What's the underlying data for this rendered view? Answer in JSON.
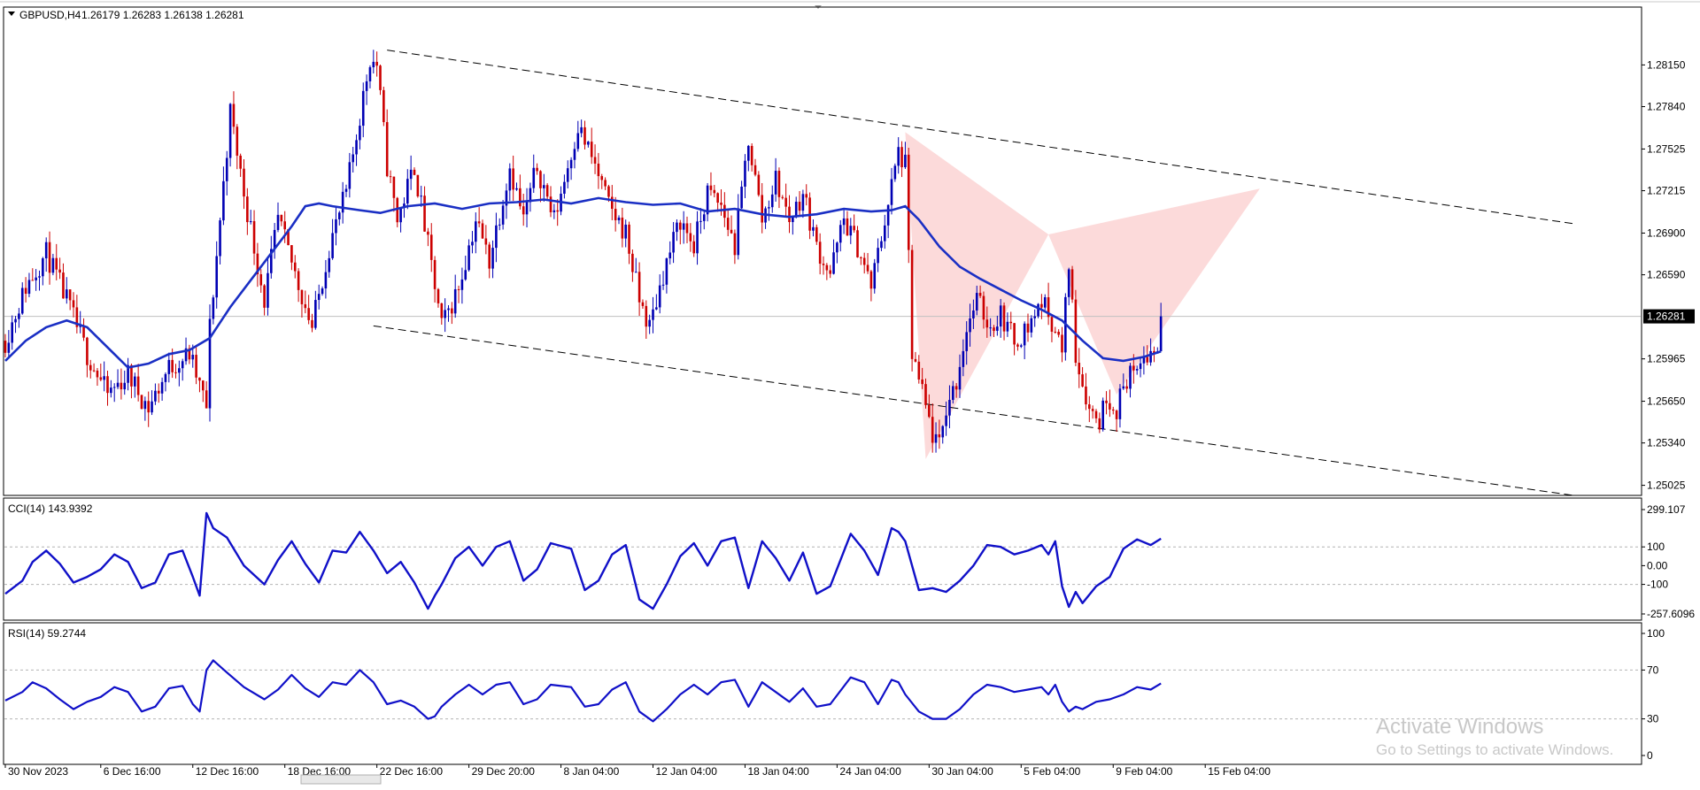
{
  "chart_data": [
    {
      "type": "candlestick",
      "title": "GBPUSD,H4",
      "ohlc_label": "1.26179 1.26283 1.26138 1.26281",
      "current_price": 1.26281,
      "current_price_label": "1.26281",
      "ylim": [
        1.2495,
        1.2858
      ],
      "y_ticks": [
        1.2815,
        1.2784,
        1.27525,
        1.27215,
        1.269,
        1.2659,
        1.25965,
        1.2565,
        1.2534,
        1.25025
      ],
      "y_tick_labels": [
        "1.28150",
        "1.27840",
        "1.27525",
        "1.27215",
        "1.26900",
        "1.26590",
        "1.25965",
        "1.25650",
        "1.25340",
        "1.25025"
      ],
      "colors": {
        "bull": "#0000b4",
        "bear": "#cc0000",
        "moving_average": "#1a2fc4",
        "pattern_fill": "#fbd3d3"
      },
      "price_path": [
        [
          0,
          1.261
        ],
        [
          6,
          1.265
        ],
        [
          12,
          1.2675
        ],
        [
          18,
          1.264
        ],
        [
          24,
          1.26
        ],
        [
          30,
          1.257
        ],
        [
          36,
          1.2585
        ],
        [
          42,
          1.256
        ],
        [
          48,
          1.259
        ],
        [
          54,
          1.26
        ],
        [
          59,
          1.256
        ],
        [
          60,
          1.262
        ],
        [
          63,
          1.27
        ],
        [
          66,
          1.278
        ],
        [
          70,
          1.272
        ],
        [
          76,
          1.264
        ],
        [
          80,
          1.27
        ],
        [
          85,
          1.266
        ],
        [
          90,
          1.262
        ],
        [
          95,
          1.268
        ],
        [
          100,
          1.272
        ],
        [
          107,
          1.282
        ],
        [
          109,
          1.2815
        ],
        [
          112,
          1.274
        ],
        [
          115,
          1.27
        ],
        [
          120,
          1.274
        ],
        [
          124,
          1.268
        ],
        [
          128,
          1.262
        ],
        [
          133,
          1.265
        ],
        [
          138,
          1.27
        ],
        [
          142,
          1.267
        ],
        [
          148,
          1.274
        ],
        [
          152,
          1.27
        ],
        [
          156,
          1.274
        ],
        [
          161,
          1.27
        ],
        [
          168,
          1.277
        ],
        [
          173,
          1.274
        ],
        [
          177,
          1.271
        ],
        [
          182,
          1.269
        ],
        [
          186,
          1.264
        ],
        [
          189,
          1.262
        ],
        [
          193,
          1.266
        ],
        [
          198,
          1.27
        ],
        [
          202,
          1.268
        ],
        [
          206,
          1.272
        ],
        [
          210,
          1.271
        ],
        [
          214,
          1.268
        ],
        [
          218,
          1.276
        ],
        [
          222,
          1.27
        ],
        [
          226,
          1.273
        ],
        [
          230,
          1.27
        ],
        [
          234,
          1.272
        ],
        [
          238,
          1.268
        ],
        [
          242,
          1.266
        ],
        [
          246,
          1.27
        ],
        [
          250,
          1.268
        ],
        [
          254,
          1.265
        ],
        [
          258,
          1.27
        ],
        [
          262,
          1.275
        ],
        [
          264,
          1.274
        ],
        [
          266,
          1.26
        ],
        [
          268,
          1.258
        ],
        [
          272,
          1.254
        ],
        [
          274,
          1.253
        ],
        [
          276,
          1.256
        ],
        [
          279,
          1.258
        ],
        [
          282,
          1.262
        ],
        [
          285,
          1.264
        ],
        [
          289,
          1.262
        ],
        [
          292,
          1.263
        ],
        [
          296,
          1.261
        ],
        [
          300,
          1.262
        ],
        [
          304,
          1.264
        ],
        [
          308,
          1.262
        ],
        [
          310,
          1.26
        ],
        [
          312,
          1.267
        ],
        [
          314,
          1.26
        ],
        [
          316,
          1.258
        ],
        [
          318,
          1.256
        ],
        [
          321,
          1.255
        ],
        [
          323,
          1.257
        ],
        [
          326,
          1.256
        ],
        [
          330,
          1.259
        ],
        [
          332,
          1.258
        ],
        [
          334,
          1.26
        ],
        [
          336,
          1.26
        ],
        [
          338,
          1.2605
        ],
        [
          339,
          1.26281
        ]
      ],
      "moving_average_path": [
        [
          0,
          1.2595
        ],
        [
          6,
          1.261
        ],
        [
          12,
          1.262
        ],
        [
          18,
          1.2625
        ],
        [
          24,
          1.262
        ],
        [
          30,
          1.2605
        ],
        [
          36,
          1.259
        ],
        [
          42,
          1.2593
        ],
        [
          48,
          1.26
        ],
        [
          54,
          1.2603
        ],
        [
          60,
          1.2612
        ],
        [
          66,
          1.2635
        ],
        [
          72,
          1.2655
        ],
        [
          78,
          1.2675
        ],
        [
          84,
          1.2695
        ],
        [
          88,
          1.271
        ],
        [
          92,
          1.2712
        ],
        [
          96,
          1.271
        ],
        [
          104,
          1.2707
        ],
        [
          110,
          1.2705
        ],
        [
          118,
          1.271
        ],
        [
          126,
          1.2712
        ],
        [
          134,
          1.2708
        ],
        [
          142,
          1.2712
        ],
        [
          150,
          1.2713
        ],
        [
          158,
          1.2715
        ],
        [
          166,
          1.2712
        ],
        [
          174,
          1.2716
        ],
        [
          182,
          1.2713
        ],
        [
          190,
          1.2711
        ],
        [
          198,
          1.2712
        ],
        [
          206,
          1.2706
        ],
        [
          214,
          1.2708
        ],
        [
          222,
          1.2704
        ],
        [
          230,
          1.2702
        ],
        [
          238,
          1.2704
        ],
        [
          246,
          1.2708
        ],
        [
          254,
          1.2706
        ],
        [
          260,
          1.2707
        ],
        [
          264,
          1.271
        ],
        [
          268,
          1.27
        ],
        [
          274,
          1.268
        ],
        [
          280,
          1.2665
        ],
        [
          286,
          1.2656
        ],
        [
          292,
          1.2648
        ],
        [
          298,
          1.264
        ],
        [
          304,
          1.2633
        ],
        [
          310,
          1.2625
        ],
        [
          316,
          1.261
        ],
        [
          322,
          1.2597
        ],
        [
          328,
          1.2595
        ],
        [
          334,
          1.2598
        ],
        [
          339,
          1.2602
        ]
      ],
      "channel_upper": {
        "from": [
          112,
          1.2826
        ],
        "to": [
          460,
          1.2697
        ]
      },
      "channel_lower": {
        "from": [
          108,
          1.2621
        ],
        "to": [
          460,
          1.2495
        ]
      },
      "pattern_triangles": [
        {
          "a": [
            264,
            1.2765
          ],
          "b": [
            270,
            1.2522
          ],
          "c": [
            306,
            1.2689
          ]
        },
        {
          "a": [
            306,
            1.2689
          ],
          "b": [
            326,
            1.257
          ],
          "c": [
            368,
            1.2723
          ]
        }
      ]
    },
    {
      "type": "line",
      "title": "CCI(14) 143.9392",
      "ylim": [
        -257.6096,
        299.107
      ],
      "y_tick_labels": [
        "299.107",
        "100",
        "0.00",
        "-100",
        "-257.6096"
      ],
      "y_ticks": [
        299.107,
        100,
        0,
        -100,
        -257.6096
      ],
      "levels": [
        100,
        -100
      ],
      "x": [
        0,
        5,
        8,
        12,
        16,
        20,
        24,
        28,
        32,
        36,
        40,
        44,
        48,
        52,
        55,
        57,
        59,
        61,
        65,
        70,
        76,
        80,
        84,
        88,
        92,
        96,
        100,
        104,
        108,
        112,
        116,
        120,
        124,
        126,
        128,
        132,
        136,
        140,
        144,
        148,
        152,
        156,
        160,
        166,
        170,
        174,
        178,
        182,
        186,
        190,
        194,
        198,
        202,
        206,
        210,
        214,
        218,
        222,
        226,
        230,
        234,
        238,
        242,
        248,
        252,
        256,
        260,
        262,
        264,
        268,
        272,
        276,
        280,
        284,
        288,
        292,
        296,
        300,
        304,
        306,
        308,
        310,
        312,
        314,
        316,
        320,
        324,
        328,
        332,
        336,
        339
      ],
      "values": [
        -150,
        -80,
        20,
        80,
        10,
        -90,
        -60,
        -20,
        60,
        20,
        -120,
        -90,
        60,
        80,
        -60,
        -160,
        280,
        200,
        150,
        0,
        -100,
        30,
        130,
        10,
        -90,
        80,
        70,
        180,
        80,
        -40,
        20,
        -90,
        -230,
        -160,
        -100,
        40,
        100,
        0,
        100,
        130,
        -80,
        -20,
        120,
        90,
        -130,
        -80,
        60,
        110,
        -180,
        -230,
        -100,
        50,
        120,
        0,
        130,
        150,
        -120,
        130,
        40,
        -80,
        70,
        -150,
        -110,
        170,
        80,
        -50,
        200,
        180,
        130,
        -130,
        -120,
        -140,
        -80,
        0,
        110,
        100,
        60,
        80,
        110,
        60,
        130,
        -110,
        -220,
        -140,
        -200,
        -110,
        -60,
        90,
        140,
        110,
        144
      ]
    },
    {
      "type": "line",
      "title": "RSI(14) 59.2744",
      "ylim": [
        0,
        100
      ],
      "y_tick_labels": [
        "100",
        "70",
        "30",
        "0"
      ],
      "y_ticks": [
        100,
        70,
        30,
        0
      ],
      "levels": [
        70,
        30
      ],
      "x": [
        0,
        5,
        8,
        12,
        16,
        20,
        24,
        28,
        32,
        36,
        40,
        44,
        48,
        52,
        55,
        57,
        59,
        61,
        65,
        70,
        76,
        80,
        84,
        88,
        92,
        96,
        100,
        104,
        108,
        112,
        116,
        120,
        124,
        126,
        128,
        132,
        136,
        140,
        144,
        148,
        152,
        156,
        160,
        166,
        170,
        174,
        178,
        182,
        186,
        190,
        194,
        198,
        202,
        206,
        210,
        214,
        218,
        222,
        226,
        230,
        234,
        238,
        242,
        248,
        252,
        256,
        260,
        262,
        264,
        268,
        272,
        276,
        280,
        284,
        288,
        292,
        296,
        300,
        304,
        306,
        308,
        310,
        312,
        314,
        316,
        320,
        324,
        328,
        332,
        336,
        339
      ],
      "values": [
        45,
        52,
        60,
        55,
        46,
        38,
        44,
        48,
        56,
        52,
        36,
        40,
        55,
        57,
        42,
        36,
        70,
        78,
        68,
        56,
        46,
        54,
        66,
        55,
        48,
        60,
        58,
        70,
        60,
        42,
        45,
        40,
        30,
        32,
        40,
        50,
        58,
        50,
        58,
        60,
        42,
        46,
        58,
        56,
        40,
        42,
        54,
        60,
        36,
        28,
        38,
        50,
        58,
        50,
        60,
        62,
        40,
        60,
        52,
        44,
        55,
        40,
        42,
        64,
        60,
        42,
        62,
        60,
        50,
        36,
        30,
        30,
        38,
        50,
        58,
        56,
        52,
        54,
        56,
        50,
        58,
        44,
        36,
        40,
        38,
        44,
        46,
        50,
        56,
        54,
        59
      ]
    }
  ],
  "x_axis": {
    "labels": [
      {
        "i": 0,
        "text": "30 Nov 2023"
      },
      {
        "i": 28,
        "text": "6 Dec 16:00"
      },
      {
        "i": 55,
        "text": "12 Dec 16:00"
      },
      {
        "i": 82,
        "text": "18 Dec 16:00"
      },
      {
        "i": 109,
        "text": "22 Dec 16:00"
      },
      {
        "i": 136,
        "text": "29 Dec 20:00"
      },
      {
        "i": 163,
        "text": "8 Jan 04:00"
      },
      {
        "i": 190,
        "text": "12 Jan 04:00"
      },
      {
        "i": 217,
        "text": "18 Jan 04:00"
      },
      {
        "i": 244,
        "text": "24 Jan 04:00"
      },
      {
        "i": 271,
        "text": "30 Jan 04:00"
      },
      {
        "i": 298,
        "text": "5 Feb 04:00"
      },
      {
        "i": 325,
        "text": "9 Feb 04:00"
      },
      {
        "i": 352,
        "text": "15 Feb 04:00"
      }
    ]
  },
  "watermark": {
    "line1": "Activate Windows",
    "line2": "Go to Settings to activate Windows."
  }
}
